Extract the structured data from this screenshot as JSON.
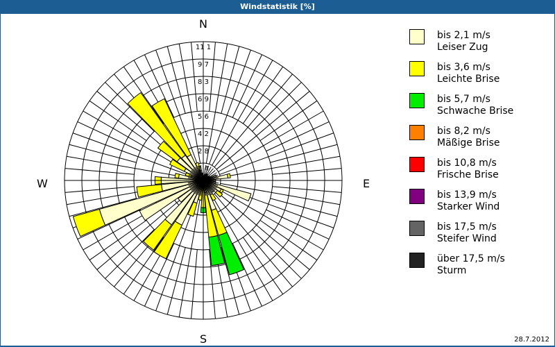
{
  "window": {
    "title": "Windstatistik [%]"
  },
  "compass": {
    "n": "N",
    "e": "E",
    "s": "S",
    "w": "W"
  },
  "footer": {
    "date": "28.7.2012"
  },
  "legend": [
    {
      "range": "bis 2,1 m/s",
      "name": "Leiser Zug",
      "color": "#ffffcc"
    },
    {
      "range": "bis 3,6 m/s",
      "name": "Leichte Brise",
      "color": "#ffff00"
    },
    {
      "range": "bis 5,7 m/s",
      "name": "Schwache Brise",
      "color": "#00ee00"
    },
    {
      "range": "bis 8,2 m/s",
      "name": "Mäßige Brise",
      "color": "#ff8000"
    },
    {
      "range": "bis 10,8 m/s",
      "name": "Frische Brise",
      "color": "#ff0000"
    },
    {
      "range": "bis 13,9 m/s",
      "name": "Starker Wind",
      "color": "#800080"
    },
    {
      "range": "bis 17,5 m/s",
      "name": "Steifer Wind",
      "color": "#646464"
    },
    {
      "range": "über 17,5 m/s",
      "name": "Sturm",
      "color": "#222222"
    }
  ],
  "chart_data": {
    "type": "polar-bar (wind rose)",
    "title": "Windstatistik [%]",
    "ring_labels": [
      "1,4",
      "2,8",
      "4,2",
      "5,6",
      "6,9",
      "8,3",
      "9,7",
      "11,1"
    ],
    "ring_values": [
      1.4,
      2.8,
      4.2,
      5.6,
      6.9,
      8.3,
      9.7,
      11.1
    ],
    "rmax": 11.1,
    "direction_labels": [
      "N",
      "E",
      "S",
      "W"
    ],
    "sector_width_deg": 10,
    "series_names": [
      "bis 2,1 m/s",
      "bis 3,6 m/s",
      "bis 5,7 m/s"
    ],
    "note": "cumulative percent boundaries per sector [cream, yellow, green]",
    "sectors": [
      {
        "deg": 0,
        "cum": [
          0.3,
          0,
          0
        ]
      },
      {
        "deg": 10,
        "cum": [
          0.4,
          0,
          0
        ]
      },
      {
        "deg": 20,
        "cum": [
          0.5,
          0,
          0
        ]
      },
      {
        "deg": 30,
        "cum": [
          0.6,
          0,
          0
        ]
      },
      {
        "deg": 40,
        "cum": [
          0.5,
          0,
          0
        ]
      },
      {
        "deg": 50,
        "cum": [
          0.4,
          0,
          0
        ]
      },
      {
        "deg": 60,
        "cum": [
          0.6,
          0,
          0
        ]
      },
      {
        "deg": 70,
        "cum": [
          1.1,
          0,
          0
        ]
      },
      {
        "deg": 80,
        "cum": [
          2.0,
          2.2,
          0
        ]
      },
      {
        "deg": 90,
        "cum": [
          1.0,
          0,
          0
        ]
      },
      {
        "deg": 100,
        "cum": [
          1.0,
          0,
          0
        ]
      },
      {
        "deg": 110,
        "cum": [
          4.0,
          0,
          0
        ]
      },
      {
        "deg": 120,
        "cum": [
          1.6,
          1.8,
          0
        ]
      },
      {
        "deg": 130,
        "cum": [
          1.4,
          1.9,
          0
        ]
      },
      {
        "deg": 140,
        "cum": [
          1.2,
          0,
          0
        ]
      },
      {
        "deg": 150,
        "cum": [
          1.3,
          1.8,
          0
        ]
      },
      {
        "deg": 160,
        "cum": [
          2.5,
          4.6,
          7.9
        ]
      },
      {
        "deg": 170,
        "cum": [
          1.0,
          4.6,
          6.9
        ]
      },
      {
        "deg": 180,
        "cum": [
          0.6,
          2.2,
          2.6
        ]
      },
      {
        "deg": 190,
        "cum": [
          0.6,
          1.6,
          0
        ]
      },
      {
        "deg": 200,
        "cum": [
          1.9,
          3.0,
          0
        ]
      },
      {
        "deg": 210,
        "cum": [
          4.0,
          7.0,
          0
        ]
      },
      {
        "deg": 220,
        "cum": [
          4.4,
          6.9,
          0
        ]
      },
      {
        "deg": 230,
        "cum": [
          2.5,
          0,
          0
        ]
      },
      {
        "deg": 240,
        "cum": [
          5.7,
          0,
          0
        ]
      },
      {
        "deg": 250,
        "cum": [
          8.7,
          10.9,
          0
        ]
      },
      {
        "deg": 260,
        "cum": [
          3.4,
          5.4,
          0
        ]
      },
      {
        "deg": 270,
        "cum": [
          3.4,
          3.9,
          0
        ]
      },
      {
        "deg": 280,
        "cum": [
          2.0,
          2.3,
          0
        ]
      },
      {
        "deg": 290,
        "cum": [
          1.0,
          1.5,
          0
        ]
      },
      {
        "deg": 300,
        "cum": [
          1.7,
          3.0,
          0
        ]
      },
      {
        "deg": 310,
        "cum": [
          2.6,
          4.5,
          0
        ]
      },
      {
        "deg": 320,
        "cum": [
          2.5,
          8.7,
          0
        ]
      },
      {
        "deg": 330,
        "cum": [
          2.3,
          7.3,
          0
        ]
      },
      {
        "deg": 340,
        "cum": [
          0.8,
          1.5,
          0
        ]
      },
      {
        "deg": 350,
        "cum": [
          0.6,
          0,
          0
        ]
      }
    ]
  }
}
